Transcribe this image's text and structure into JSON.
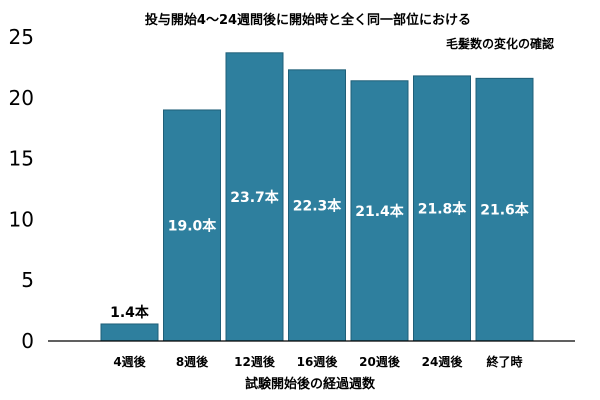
{
  "chart_data": {
    "type": "bar",
    "title_line1": "投与開始4～24週間後に開始時と全く同一部位における",
    "title_line2": "毛髪数の変化の確認",
    "xlabel": "試験開始後の経過週数",
    "ylabel": "",
    "ylim": [
      0,
      25
    ],
    "yticks": [
      0,
      5,
      10,
      15,
      20,
      25
    ],
    "categories": [
      "4週後",
      "8週後",
      "12週後",
      "16週後",
      "20週後",
      "24週後",
      "終了時"
    ],
    "values": [
      1.4,
      19.0,
      23.7,
      22.3,
      21.4,
      21.8,
      21.6
    ],
    "data_labels": [
      "1.4本",
      "19.0本",
      "23.7本",
      "22.3本",
      "21.4本",
      "21.8本",
      "21.6本"
    ],
    "grid": false,
    "legend": "none",
    "colors": {
      "bar": "#2e7f9e",
      "bar_edge": "#1f5f78",
      "label_inside": "#ffffff",
      "label_outside": "#000000",
      "axis": "#000000"
    }
  }
}
